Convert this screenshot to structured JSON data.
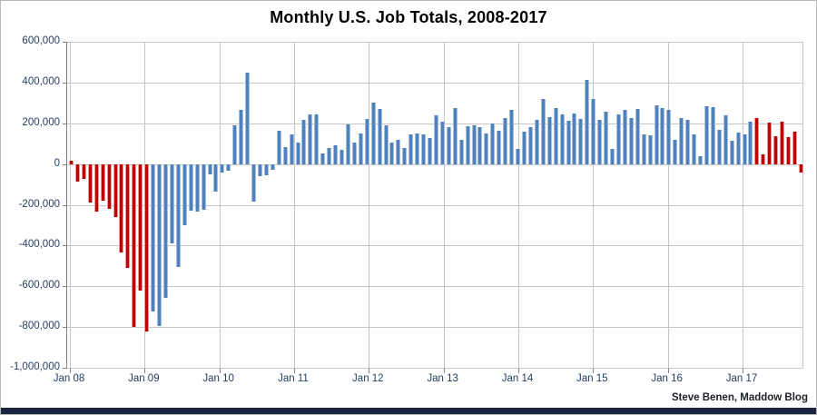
{
  "title": "Monthly U.S. Job Totals, 2008-2017",
  "attribution": "Steve Benen, Maddow Blog",
  "y_axis": {
    "labels": [
      "600,000",
      "400,000",
      "200,000",
      "0",
      "-200,000",
      "-400,000",
      "-600,000",
      "-800,000",
      "-1,000,000"
    ]
  },
  "x_axis": {
    "tick_labels": [
      "Jan 08",
      "Jan 09",
      "Jan 10",
      "Jan 11",
      "Jan 12",
      "Jan 13",
      "Jan 14",
      "Jan 15",
      "Jan 16",
      "Jan 17"
    ]
  },
  "chart_data": {
    "type": "bar",
    "title": "Monthly U.S. Job Totals, 2008-2017",
    "xlabel": "",
    "ylabel": "",
    "ylim": [
      -1000000,
      600000
    ],
    "y_tick_step": 200000,
    "grid": true,
    "values_in_thousands": true,
    "time_range": "Jan 2008 - Sep 2017",
    "series_by_year": [
      {
        "year": 2008,
        "values": [
          15,
          -85,
          -75,
          -190,
          -235,
          -180,
          -220,
          -260,
          -435,
          -510,
          -800,
          -620
        ]
      },
      {
        "year": 2009,
        "values": [
          -820,
          -725,
          -795,
          -655,
          -390,
          -505,
          -300,
          -230,
          -235,
          -225,
          -50,
          -135
        ]
      },
      {
        "year": 2010,
        "values": [
          -40,
          -35,
          190,
          265,
          450,
          -185,
          -60,
          -55,
          -30,
          165,
          85,
          145
        ]
      },
      {
        "year": 2011,
        "values": [
          105,
          215,
          245,
          245,
          50,
          80,
          90,
          70,
          195,
          105,
          150,
          220
        ]
      },
      {
        "year": 2012,
        "values": [
          300,
          270,
          192,
          107,
          120,
          81,
          144,
          150,
          147,
          126,
          240,
          210
        ]
      },
      {
        "year": 2013,
        "values": [
          181,
          275,
          120,
          185,
          190,
          180,
          150,
          200,
          165,
          225,
          267,
          74
        ]
      },
      {
        "year": 2014,
        "values": [
          159,
          181,
          218,
          321,
          230,
          277,
          244,
          213,
          247,
          222,
          413,
          319
        ]
      },
      {
        "year": 2015,
        "values": [
          215,
          255,
          75,
          245,
          265,
          225,
          270,
          145,
          140,
          290,
          275,
          265
        ]
      },
      {
        "year": 2016,
        "values": [
          117,
          228,
          218,
          144,
          38,
          284,
          281,
          169,
          237,
          114,
          154,
          147
        ]
      },
      {
        "year": 2017,
        "values": [
          210,
          225,
          47,
          203,
          136,
          207,
          132,
          161,
          -41
        ]
      }
    ],
    "colors": {
      "red": "#c00000",
      "blue": "#4f81bd"
    },
    "color_rule": {
      "red_months": [
        "Jan 2008 - Jan 2009",
        "Feb 2017 - Sep 2017"
      ],
      "blue_months": [
        "Feb 2009 - Jan 2017"
      ]
    },
    "legend": "none"
  }
}
